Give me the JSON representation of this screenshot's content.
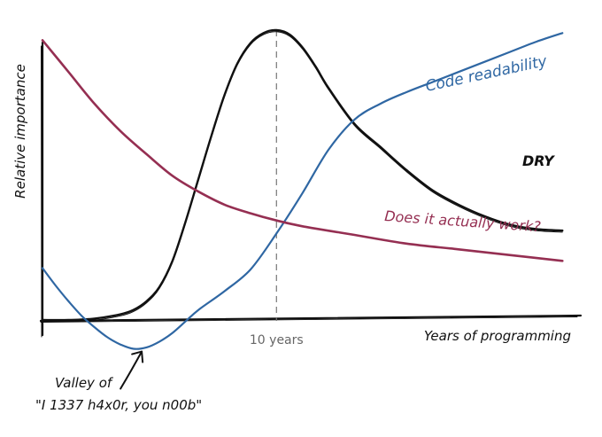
{
  "chart_data": {
    "type": "line",
    "title": "",
    "xlabel": "Years of programming",
    "ylabel": "Relative importance",
    "xlim": [
      0,
      20.5
    ],
    "ylim": [
      -1.2,
      11
    ],
    "grid": false,
    "legend": "none (series labelled inline)",
    "annotations": {
      "vline": {
        "x": 9,
        "label": "10 years"
      },
      "valley": {
        "line1": "Valley of",
        "line2": "\"I 1337 h4x0r, you n00b\"",
        "target": {
          "x": 3.75,
          "y": -1.0
        }
      }
    },
    "series": [
      {
        "name": "DRY",
        "color": "#111111",
        "x": [
          0,
          1,
          2,
          3,
          3.5,
          4,
          4.5,
          5,
          5.5,
          6,
          6.5,
          7,
          7.5,
          8,
          8.5,
          9,
          9.5,
          10,
          10.5,
          11,
          12,
          13,
          14,
          15,
          16,
          17,
          18,
          19,
          20
        ],
        "y": [
          0,
          0,
          0.05,
          0.2,
          0.35,
          0.65,
          1.15,
          2.05,
          3.4,
          4.9,
          6.4,
          7.8,
          8.9,
          9.6,
          9.95,
          10.05,
          9.9,
          9.45,
          8.8,
          8.05,
          6.8,
          6.0,
          5.2,
          4.5,
          4.0,
          3.6,
          3.3,
          3.15,
          3.1
        ]
      },
      {
        "name": "Code readability",
        "color": "#2f67a3",
        "x": [
          0,
          0.5,
          1,
          1.5,
          2,
          2.5,
          3,
          3.5,
          4,
          4.5,
          5,
          5.5,
          6,
          7,
          8,
          9,
          10,
          11,
          12,
          13,
          14,
          15,
          16,
          17,
          18,
          19,
          20
        ],
        "y": [
          1.8,
          1.2,
          0.65,
          0.15,
          -0.25,
          -0.6,
          -0.85,
          -1.0,
          -0.95,
          -0.75,
          -0.45,
          -0.05,
          0.35,
          1.0,
          1.75,
          3.0,
          4.4,
          5.9,
          6.95,
          7.5,
          7.9,
          8.25,
          8.6,
          8.95,
          9.3,
          9.65,
          9.95
        ]
      },
      {
        "name": "Does it actually work?",
        "color": "#952f52",
        "x": [
          0,
          1,
          2,
          3,
          4,
          5,
          6,
          7,
          8,
          9,
          10,
          12,
          14,
          16,
          18,
          20
        ],
        "y": [
          9.7,
          8.6,
          7.5,
          6.55,
          5.75,
          5.0,
          4.45,
          4.0,
          3.7,
          3.45,
          3.25,
          2.95,
          2.65,
          2.45,
          2.25,
          2.05
        ]
      }
    ]
  }
}
